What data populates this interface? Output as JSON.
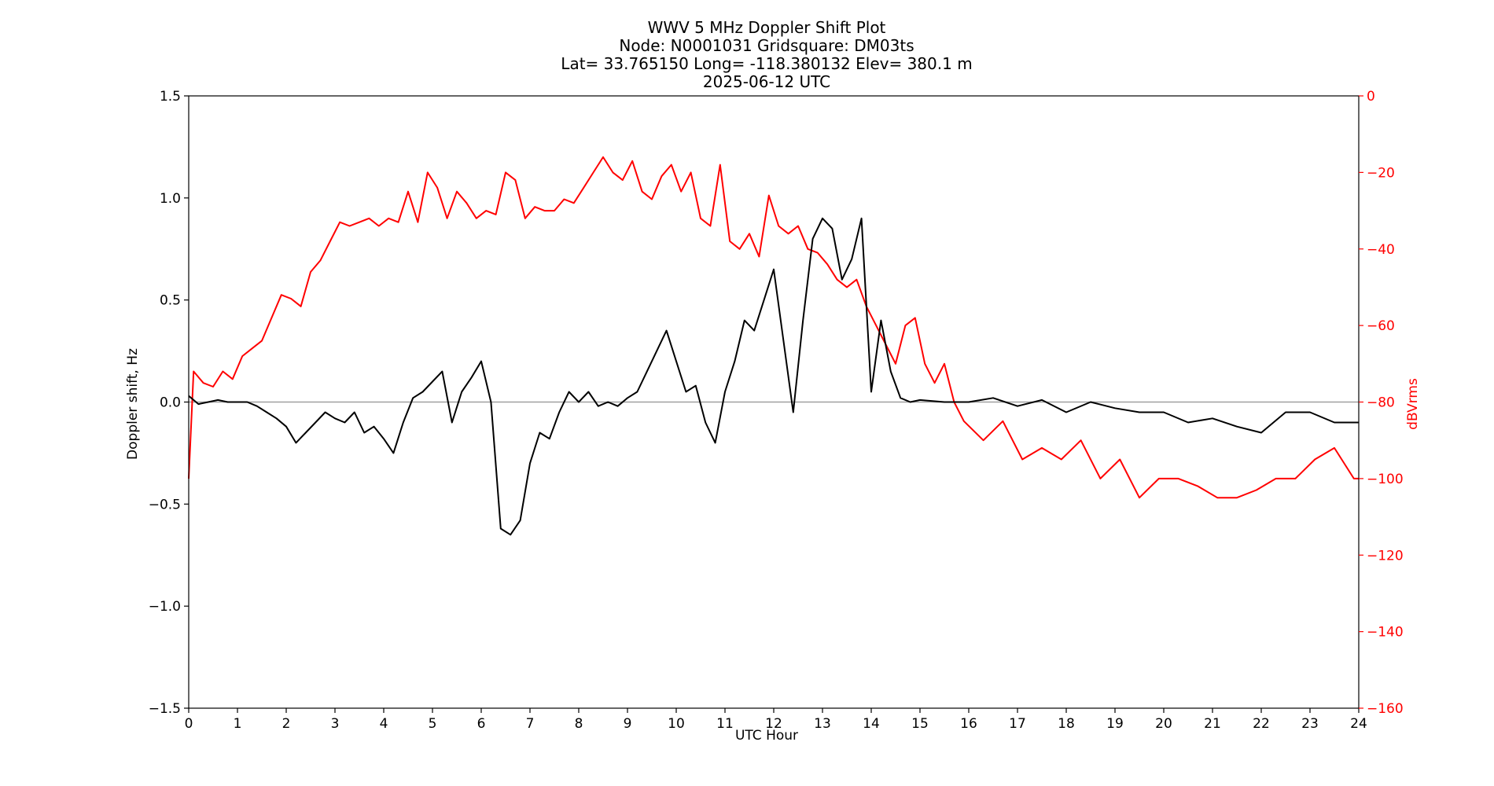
{
  "chart_data": {
    "type": "line",
    "title_lines": [
      "WWV 5 MHz Doppler Shift Plot",
      "Node:  N0001031     Gridsquare:  DM03ts",
      "Lat= 33.765150    Long= -118.380132    Elev= 380.1 m",
      "2025-06-12  UTC"
    ],
    "xlabel": "UTC Hour",
    "ylabel_left": "Doppler shift, Hz",
    "ylabel_right": "dBVrms",
    "xlim": [
      0,
      24
    ],
    "ylim_left": [
      -1.5,
      1.5
    ],
    "ylim_right": [
      -160,
      0
    ],
    "x_ticks": [
      "0",
      "1",
      "2",
      "3",
      "4",
      "5",
      "6",
      "7",
      "8",
      "9",
      "10",
      "11",
      "12",
      "13",
      "14",
      "15",
      "16",
      "17",
      "18",
      "19",
      "20",
      "21",
      "22",
      "23",
      "24"
    ],
    "y_ticks_left": [
      "1.5",
      "1.0",
      "0.5",
      "0.0",
      "−0.5",
      "−1.0",
      "−1.5"
    ],
    "y_ticks_left_values": [
      1.5,
      1.0,
      0.5,
      0.0,
      -0.5,
      -1.0,
      -1.5
    ],
    "y_ticks_right": [
      "0",
      "−20",
      "−40",
      "−60",
      "−80",
      "−100",
      "−120",
      "−140",
      "−160"
    ],
    "y_ticks_right_values": [
      0,
      -20,
      -40,
      -60,
      -80,
      -100,
      -120,
      -140,
      -160
    ],
    "zero_line": 0.0,
    "grid": false,
    "colors": {
      "doppler": "#000000",
      "power": "#ff0000",
      "zero_line": "#a0a0a0",
      "right_axis": "#ff0000"
    },
    "series": [
      {
        "axis": "left",
        "x": [
          0,
          0.2,
          0.4,
          0.6,
          0.8,
          1.0,
          1.2,
          1.4,
          1.6,
          1.8,
          2.0,
          2.2,
          2.4,
          2.6,
          2.8,
          3.0,
          3.2,
          3.4,
          3.6,
          3.8,
          4.0,
          4.2,
          4.4,
          4.6,
          4.8,
          5.0,
          5.2,
          5.4,
          5.6,
          5.8,
          6.0,
          6.2,
          6.4,
          6.6,
          6.8,
          7.0,
          7.2,
          7.4,
          7.6,
          7.8,
          8.0,
          8.2,
          8.4,
          8.6,
          8.8,
          9.0,
          9.2,
          9.4,
          9.6,
          9.8,
          10.0,
          10.2,
          10.4,
          10.6,
          10.8,
          11.0,
          11.2,
          11.4,
          11.6,
          11.8,
          12.0,
          12.2,
          12.4,
          12.6,
          12.8,
          13.0,
          13.2,
          13.4,
          13.6,
          13.8,
          14.0,
          14.2,
          14.4,
          14.6,
          14.8,
          15.0,
          15.5,
          16.0,
          16.5,
          17.0,
          17.5,
          18.0,
          18.5,
          19.0,
          19.5,
          20.0,
          20.5,
          21.0,
          21.5,
          22.0,
          22.5,
          23.0,
          23.5,
          24.0
        ],
        "values": [
          0.03,
          -0.01,
          0.0,
          0.01,
          0.0,
          0.0,
          0.0,
          -0.02,
          -0.05,
          -0.08,
          -0.12,
          -0.2,
          -0.15,
          -0.1,
          -0.05,
          -0.08,
          -0.1,
          -0.05,
          -0.15,
          -0.12,
          -0.18,
          -0.25,
          -0.1,
          0.02,
          0.05,
          0.1,
          0.15,
          -0.1,
          0.05,
          0.12,
          0.2,
          0.0,
          -0.62,
          -0.65,
          -0.58,
          -0.3,
          -0.15,
          -0.18,
          -0.05,
          0.05,
          0.0,
          0.05,
          -0.02,
          0.0,
          -0.02,
          0.02,
          0.05,
          0.15,
          0.25,
          0.35,
          0.2,
          0.05,
          0.08,
          -0.1,
          -0.2,
          0.05,
          0.2,
          0.4,
          0.35,
          0.5,
          0.65,
          0.3,
          -0.05,
          0.4,
          0.8,
          0.9,
          0.85,
          0.6,
          0.7,
          0.9,
          0.05,
          0.4,
          0.15,
          0.02,
          0.0,
          0.01,
          0.0,
          0.0,
          0.02,
          -0.02,
          0.01,
          -0.05,
          0.0,
          -0.03,
          -0.05,
          -0.05,
          -0.1,
          -0.08,
          -0.12,
          -0.15,
          -0.05,
          -0.05,
          -0.1,
          -0.1
        ]
      },
      {
        "axis": "right",
        "x": [
          0,
          0.1,
          0.3,
          0.5,
          0.7,
          0.9,
          1.1,
          1.3,
          1.5,
          1.7,
          1.9,
          2.1,
          2.3,
          2.5,
          2.7,
          2.9,
          3.1,
          3.3,
          3.5,
          3.7,
          3.9,
          4.1,
          4.3,
          4.5,
          4.7,
          4.9,
          5.1,
          5.3,
          5.5,
          5.7,
          5.9,
          6.1,
          6.3,
          6.5,
          6.7,
          6.9,
          7.1,
          7.3,
          7.5,
          7.7,
          7.9,
          8.1,
          8.3,
          8.5,
          8.7,
          8.9,
          9.1,
          9.3,
          9.5,
          9.7,
          9.9,
          10.1,
          10.3,
          10.5,
          10.7,
          10.9,
          11.1,
          11.3,
          11.5,
          11.7,
          11.9,
          12.1,
          12.3,
          12.5,
          12.7,
          12.9,
          13.1,
          13.3,
          13.5,
          13.7,
          13.9,
          14.1,
          14.3,
          14.5,
          14.7,
          14.9,
          15.1,
          15.3,
          15.5,
          15.7,
          15.9,
          16.3,
          16.7,
          17.1,
          17.5,
          17.9,
          18.3,
          18.7,
          19.1,
          19.5,
          19.9,
          20.3,
          20.7,
          21.1,
          21.5,
          21.9,
          22.3,
          22.7,
          23.1,
          23.5,
          23.9,
          24.0
        ],
        "values": [
          -100,
          -72,
          -75,
          -76,
          -72,
          -74,
          -68,
          -66,
          -64,
          -58,
          -52,
          -53,
          -55,
          -46,
          -43,
          -38,
          -33,
          -34,
          -33,
          -32,
          -34,
          -32,
          -33,
          -25,
          -33,
          -20,
          -24,
          -32,
          -25,
          -28,
          -32,
          -30,
          -31,
          -20,
          -22,
          -32,
          -29,
          -30,
          -30,
          -27,
          -28,
          -24,
          -20,
          -16,
          -20,
          -22,
          -17,
          -25,
          -27,
          -21,
          -18,
          -25,
          -20,
          -32,
          -34,
          -18,
          -38,
          -40,
          -36,
          -42,
          -26,
          -34,
          -36,
          -34,
          -40,
          -41,
          -44,
          -48,
          -50,
          -48,
          -55,
          -60,
          -65,
          -70,
          -60,
          -58,
          -70,
          -75,
          -70,
          -80,
          -85,
          -90,
          -85,
          -95,
          -92,
          -95,
          -90,
          -100,
          -95,
          -105,
          -100,
          -100,
          -102,
          -105,
          -105,
          -103,
          -100,
          -100,
          -95,
          -92,
          -100,
          -100
        ]
      }
    ]
  }
}
